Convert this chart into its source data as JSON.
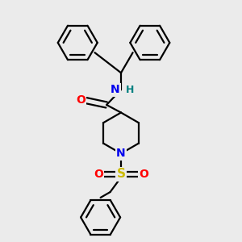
{
  "background_color": "#ebebeb",
  "bond_color": "#000000",
  "atom_colors": {
    "O": "#ff0000",
    "N": "#0000ee",
    "S": "#ccbb00",
    "H": "#008080",
    "C": "#000000"
  },
  "figsize": [
    3.0,
    3.0
  ],
  "dpi": 100,
  "ring_r": 0.082,
  "bond_lw": 1.6,
  "font_size_atom": 10,
  "font_size_H": 9
}
